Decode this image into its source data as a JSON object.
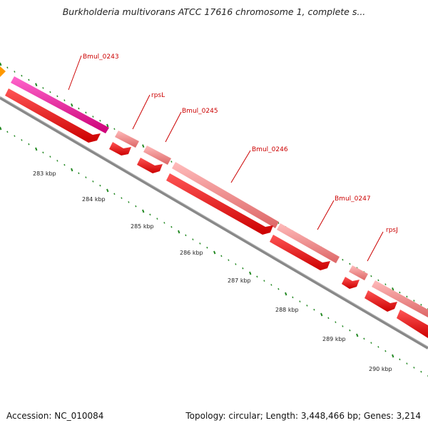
{
  "title": "Burkholderia multivorans ATCC 17616 chromosome 1, complete s...",
  "footer": {
    "accession": "Accession: NC_010084",
    "summary": "Topology: circular; Length: 3,448,466 bp; Genes: 3,214"
  },
  "gene_labels": [
    "Bmul_0243",
    "rpsL",
    "Bmul_0245",
    "Bmul_0246",
    "Bmul_0247",
    "rpsJ"
  ],
  "kbp_labels": [
    "283 kbp",
    "284 kbp",
    "285 kbp",
    "286 kbp",
    "287 kbp",
    "288 kbp",
    "289 kbp",
    "290 kbp"
  ],
  "colors": {
    "magenta_gene": "#ee1199",
    "pink_gene": "#ee8888",
    "red_gene": "#ff0000",
    "orange_gene": "#ff9900",
    "backbone": "#888888",
    "tick": "#228822",
    "label": "#cc0000"
  }
}
